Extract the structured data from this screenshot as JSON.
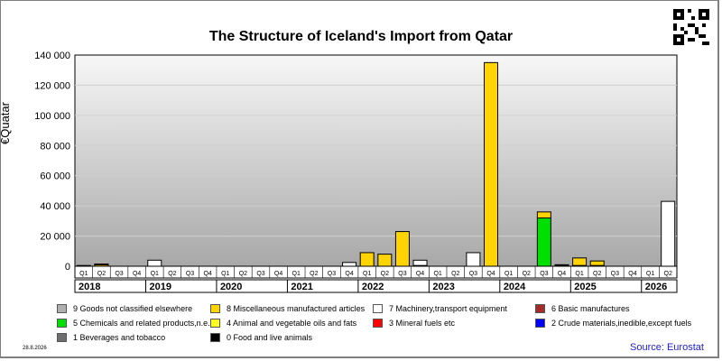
{
  "chart_data": {
    "type": "bar",
    "title": "The Structure of Iceland's Import from Qatar",
    "ylabel": "€Quatar",
    "ylim": [
      0,
      140000
    ],
    "yticks": [
      "0",
      "20 000",
      "40 000",
      "60 000",
      "80 000",
      "100 000",
      "120 000",
      "140 000"
    ],
    "ytick_values": [
      0,
      20000,
      40000,
      60000,
      80000,
      100000,
      120000,
      140000
    ],
    "quarters": [
      "Q1",
      "Q2",
      "Q3",
      "Q4",
      "Q1",
      "Q2",
      "Q3",
      "Q4",
      "Q1",
      "Q2",
      "Q3",
      "Q4",
      "Q1",
      "Q2",
      "Q3",
      "Q4",
      "Q1",
      "Q2",
      "Q3",
      "Q4",
      "Q1",
      "Q2",
      "Q3",
      "Q4",
      "Q1",
      "Q2",
      "Q3",
      "Q4",
      "Q1",
      "Q2",
      "Q3",
      "Q4",
      "Q1",
      "Q2"
    ],
    "years": [
      "2018",
      "2019",
      "2020",
      "2021",
      "2022",
      "2023",
      "2024",
      "2025",
      "2026"
    ],
    "grid": true,
    "legend_position": "bottom",
    "series": [
      {
        "name": "9 Goods not classified elsewhere",
        "color": "#b0b0b0",
        "values": [
          500,
          500,
          0,
          0,
          0,
          0,
          0,
          0,
          0,
          0,
          0,
          0,
          0,
          0,
          0,
          0,
          0,
          0,
          0,
          0,
          0,
          0,
          0,
          0,
          0,
          0,
          0,
          0,
          0,
          0,
          0,
          0,
          0,
          0
        ]
      },
      {
        "name": "8 Miscellaneous manufactured articles",
        "color": "#ffd400",
        "values": [
          0,
          1000,
          0,
          0,
          0,
          0,
          0,
          0,
          0,
          0,
          0,
          0,
          0,
          0,
          0,
          0,
          9000,
          8000,
          23000,
          0,
          0,
          0,
          0,
          135000,
          0,
          0,
          4000,
          0,
          5000,
          3000,
          0,
          0,
          0,
          0
        ]
      },
      {
        "name": "7 Machinery,transport equipment",
        "color": "#ffffff",
        "values": [
          0,
          0,
          0,
          0,
          4000,
          0,
          0,
          0,
          0,
          0,
          0,
          0,
          0,
          0,
          0,
          2500,
          0,
          0,
          0,
          3500,
          0,
          0,
          9000,
          0,
          0,
          0,
          0,
          500,
          500,
          500,
          0,
          0,
          0,
          43000
        ]
      },
      {
        "name": "6 Basic manufactures",
        "color": "#a52a2a",
        "values": [
          0,
          0,
          0,
          0,
          0,
          0,
          0,
          0,
          0,
          0,
          0,
          0,
          0,
          0,
          0,
          0,
          0,
          0,
          0,
          0,
          0,
          0,
          0,
          0,
          0,
          0,
          0,
          0,
          0,
          0,
          0,
          0,
          0,
          0
        ]
      },
      {
        "name": "5 Chemicals and related products,n.e.s.",
        "color": "#00e000",
        "values": [
          0,
          0,
          0,
          0,
          0,
          0,
          0,
          0,
          0,
          0,
          0,
          0,
          0,
          0,
          0,
          0,
          0,
          0,
          0,
          0,
          0,
          0,
          0,
          0,
          0,
          0,
          32000,
          0,
          0,
          0,
          0,
          0,
          0,
          0
        ]
      },
      {
        "name": "4 Animal and vegetable oils and fats",
        "color": "#ffff22",
        "values": [
          0,
          0,
          0,
          0,
          0,
          0,
          0,
          0,
          0,
          0,
          0,
          0,
          0,
          0,
          0,
          0,
          0,
          0,
          0,
          0,
          0,
          0,
          0,
          0,
          0,
          0,
          0,
          0,
          0,
          0,
          0,
          0,
          0,
          0
        ]
      },
      {
        "name": "3 Mineral fuels etc",
        "color": "#ff0000",
        "values": [
          0,
          0,
          0,
          0,
          0,
          0,
          0,
          0,
          0,
          0,
          0,
          0,
          0,
          0,
          0,
          0,
          0,
          0,
          0,
          0,
          0,
          0,
          0,
          0,
          0,
          0,
          0,
          0,
          0,
          0,
          0,
          0,
          0,
          0
        ]
      },
      {
        "name": "2 Crude materials,inedible,except fuels",
        "color": "#0000ff",
        "values": [
          0,
          0,
          0,
          0,
          0,
          0,
          0,
          0,
          0,
          0,
          0,
          0,
          0,
          0,
          0,
          0,
          0,
          0,
          0,
          0,
          0,
          0,
          0,
          0,
          0,
          0,
          0,
          0,
          0,
          0,
          0,
          0,
          0,
          0
        ]
      },
      {
        "name": "1 Beverages and tobacco",
        "color": "#6e6e6e",
        "values": [
          0,
          0,
          0,
          0,
          0,
          0,
          0,
          0,
          0,
          0,
          0,
          0,
          0,
          0,
          0,
          0,
          0,
          0,
          0,
          0,
          0,
          0,
          0,
          0,
          0,
          0,
          0,
          0,
          0,
          0,
          0,
          0,
          0,
          0
        ]
      },
      {
        "name": "0 Food and live animals",
        "color": "#000000",
        "values": [
          0,
          0,
          0,
          0,
          0,
          0,
          0,
          0,
          0,
          0,
          0,
          0,
          0,
          0,
          0,
          0,
          0,
          0,
          0,
          500,
          0,
          0,
          0,
          0,
          0,
          0,
          0,
          500,
          0,
          0,
          0,
          0,
          0,
          0
        ]
      }
    ]
  },
  "footer": {
    "date": "28.8.2026",
    "source": "Source: Eurostat"
  }
}
